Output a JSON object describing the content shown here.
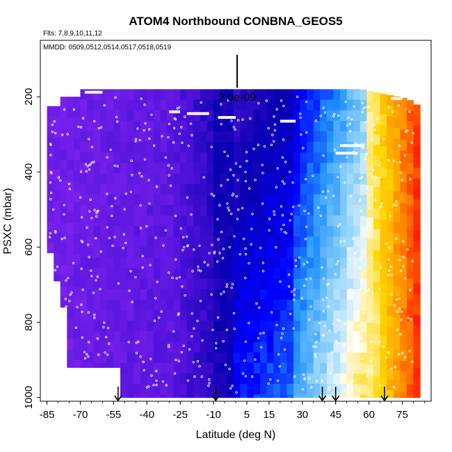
{
  "chart_data": {
    "type": "heatmap",
    "title": "ATOM4 Northbound CONBNA_GEOS5",
    "flights_note": "Flts: 7,8,9,10,11,12",
    "dates_note": "MMDD: 0509,0512,0514,0517,0518,0519",
    "scale_label": "2.0e-09",
    "xlabel": "Latitude (deg N)",
    "ylabel": "PSXC (mbar)",
    "xlim": [
      -88,
      88
    ],
    "ylim": [
      1010,
      50
    ],
    "x_ticks": [
      -85,
      -70,
      -55,
      -40,
      -25,
      -10,
      5,
      15,
      30,
      45,
      60,
      75
    ],
    "y_ticks": [
      200,
      400,
      600,
      800,
      1000
    ],
    "x_range_covered": [
      -85,
      82
    ],
    "p_range_covered": [
      180,
      1000
    ],
    "gradient_description": "purple in south, dark blue near equator, light blue to white near 30-55N, orange to red north of 60N",
    "colorscale": [
      "#7b22ee",
      "#4a10d8",
      "#0a00b0",
      "#0000ff",
      "#1e90ff",
      "#87cefa",
      "#ffffff",
      "#ffd700",
      "#ff8c00",
      "#ff2000"
    ],
    "arrow_latitudes": [
      -53,
      -9,
      39,
      45,
      67
    ],
    "observation_color": "#ffffff"
  }
}
